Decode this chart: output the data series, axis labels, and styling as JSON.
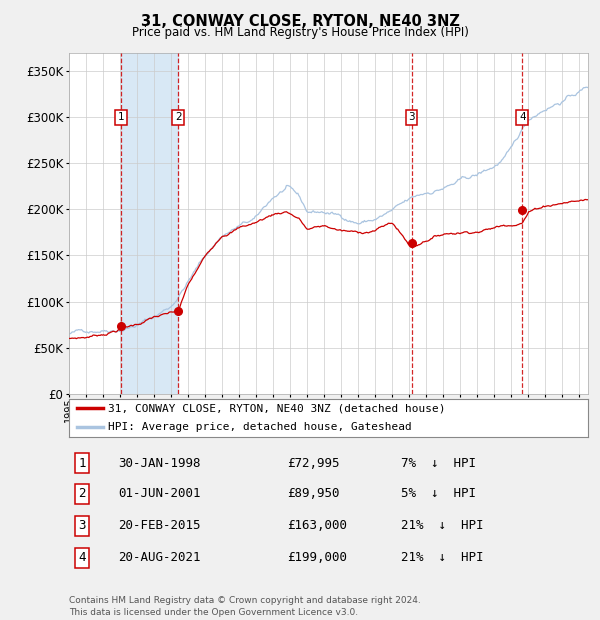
{
  "title": "31, CONWAY CLOSE, RYTON, NE40 3NZ",
  "subtitle": "Price paid vs. HM Land Registry's House Price Index (HPI)",
  "footer": "Contains HM Land Registry data © Crown copyright and database right 2024.\nThis data is licensed under the Open Government Licence v3.0.",
  "legend_line1": "31, CONWAY CLOSE, RYTON, NE40 3NZ (detached house)",
  "legend_line2": "HPI: Average price, detached house, Gateshead",
  "transactions": [
    {
      "num": 1,
      "date": "30-JAN-1998",
      "price": 72995,
      "pct": "7%",
      "dir": "↓",
      "year_x": 1998.08
    },
    {
      "num": 2,
      "date": "01-JUN-2001",
      "price": 89950,
      "pct": "5%",
      "dir": "↓",
      "year_x": 2001.42
    },
    {
      "num": 3,
      "date": "20-FEB-2015",
      "price": 163000,
      "pct": "21%",
      "dir": "↓",
      "year_x": 2015.13
    },
    {
      "num": 4,
      "date": "20-AUG-2021",
      "price": 199000,
      "pct": "21%",
      "dir": "↓",
      "year_x": 2021.64
    }
  ],
  "hpi_color": "#aac4e0",
  "price_color": "#cc0000",
  "vline_color": "#cc0000",
  "shade_color": "#d8e8f5",
  "grid_color": "#cccccc",
  "background_color": "#f0f0f0",
  "plot_bg": "#ffffff",
  "ylim": [
    0,
    370000
  ],
  "xmin": 1995.0,
  "xmax": 2025.5,
  "hpi_anchors": [
    [
      1995.0,
      65000
    ],
    [
      1996.0,
      68000
    ],
    [
      1997.0,
      72000
    ],
    [
      1998.0,
      76000
    ],
    [
      1999.0,
      82000
    ],
    [
      2000.0,
      90000
    ],
    [
      2001.0,
      102000
    ],
    [
      2002.0,
      130000
    ],
    [
      2003.0,
      157000
    ],
    [
      2004.0,
      180000
    ],
    [
      2005.0,
      190000
    ],
    [
      2006.0,
      196000
    ],
    [
      2007.0,
      218000
    ],
    [
      2007.8,
      228000
    ],
    [
      2008.5,
      215000
    ],
    [
      2009.0,
      198000
    ],
    [
      2010.0,
      198000
    ],
    [
      2011.0,
      193000
    ],
    [
      2012.0,
      188000
    ],
    [
      2013.0,
      192000
    ],
    [
      2014.0,
      200000
    ],
    [
      2015.0,
      208000
    ],
    [
      2016.0,
      215000
    ],
    [
      2017.0,
      222000
    ],
    [
      2018.0,
      228000
    ],
    [
      2019.0,
      233000
    ],
    [
      2020.0,
      242000
    ],
    [
      2021.0,
      258000
    ],
    [
      2022.0,
      290000
    ],
    [
      2023.0,
      305000
    ],
    [
      2024.0,
      315000
    ],
    [
      2025.5,
      330000
    ]
  ],
  "price_anchors": [
    [
      1995.0,
      60000
    ],
    [
      1996.0,
      62000
    ],
    [
      1997.0,
      66000
    ],
    [
      1998.08,
      72995
    ],
    [
      1999.0,
      78000
    ],
    [
      2000.0,
      86000
    ],
    [
      2001.42,
      89950
    ],
    [
      2002.0,
      118000
    ],
    [
      2003.0,
      148000
    ],
    [
      2004.0,
      174000
    ],
    [
      2005.0,
      183000
    ],
    [
      2006.0,
      189000
    ],
    [
      2007.0,
      198000
    ],
    [
      2007.8,
      202000
    ],
    [
      2008.5,
      195000
    ],
    [
      2009.0,
      183000
    ],
    [
      2010.0,
      186000
    ],
    [
      2011.0,
      181000
    ],
    [
      2012.0,
      178000
    ],
    [
      2013.0,
      182000
    ],
    [
      2014.0,
      190000
    ],
    [
      2015.13,
      163000
    ],
    [
      2015.5,
      167000
    ],
    [
      2016.0,
      173000
    ],
    [
      2017.0,
      180000
    ],
    [
      2018.0,
      183000
    ],
    [
      2019.0,
      186000
    ],
    [
      2020.0,
      190000
    ],
    [
      2021.64,
      199000
    ],
    [
      2022.0,
      210000
    ],
    [
      2023.0,
      218000
    ],
    [
      2024.0,
      222000
    ],
    [
      2025.5,
      226000
    ]
  ]
}
